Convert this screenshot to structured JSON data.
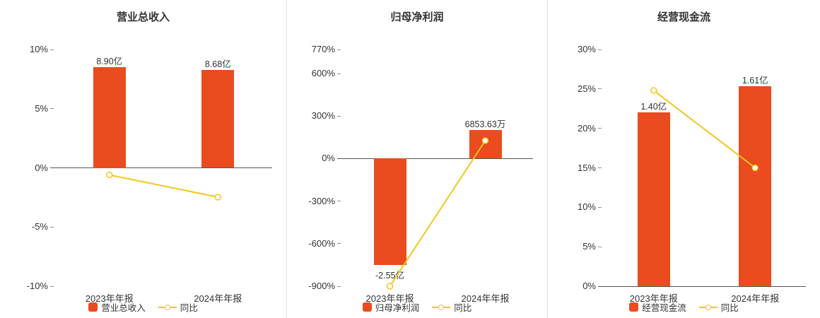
{
  "chart_data": [
    {
      "type": "bar",
      "title": "营业总收入",
      "categories": [
        "2023年年报",
        "2024年年报"
      ],
      "bar_series": {
        "name": "营业总收入",
        "value_labels": [
          "8.90亿",
          "8.68亿"
        ],
        "plotted_values_pct": [
          8.5,
          8.29
        ],
        "color": "#EA4B1F"
      },
      "line_series": {
        "name": "同比",
        "values_pct": [
          -0.6,
          -2.47
        ],
        "color": "#F5C51E"
      },
      "ylim": [
        -10,
        10
      ],
      "yticks": [
        10,
        5,
        0,
        -5,
        -10
      ],
      "ytick_labels": [
        "10%",
        "5%",
        "0%",
        "-5%",
        "-10%"
      ],
      "grid": false,
      "legend_position": "bottom"
    },
    {
      "type": "bar",
      "title": "归母净利润",
      "categories": [
        "2023年年报",
        "2024年年报"
      ],
      "bar_series": {
        "name": "归母净利润",
        "value_labels": [
          "-2.55亿",
          "6853.63万"
        ],
        "plotted_values_pct": [
          -750,
          202
        ],
        "color": "#EA4B1F"
      },
      "line_series": {
        "name": "同比",
        "values_pct": [
          -900,
          126.88
        ],
        "color": "#F5C51E"
      },
      "ylim": [
        -900,
        770
      ],
      "yticks": [
        770,
        600,
        300,
        0,
        -300,
        -600,
        -900
      ],
      "ytick_labels": [
        "770%",
        "600%",
        "300%",
        "0%",
        "-300%",
        "-600%",
        "-900%"
      ],
      "grid": false,
      "legend_position": "bottom"
    },
    {
      "type": "bar",
      "title": "经营现金流",
      "categories": [
        "2023年年报",
        "2024年年报"
      ],
      "bar_series": {
        "name": "经营现金流",
        "value_labels": [
          "1.40亿",
          "1.61亿"
        ],
        "plotted_values_pct": [
          22,
          25.3
        ],
        "color": "#EA4B1F"
      },
      "line_series": {
        "name": "同比",
        "values_pct": [
          24.8,
          15.0
        ],
        "color": "#F5C51E"
      },
      "ylim": [
        0,
        30
      ],
      "yticks": [
        30,
        25,
        20,
        15,
        10,
        5,
        0
      ],
      "ytick_labels": [
        "30%",
        "25%",
        "20%",
        "15%",
        "10%",
        "5%",
        "0%"
      ],
      "grid": false,
      "legend_position": "bottom"
    }
  ],
  "colors": {
    "bar": "#EA4B1F",
    "line": "#F5C51E",
    "axis": "#555555",
    "text": "#333333",
    "divider": "#e3e3e3"
  }
}
